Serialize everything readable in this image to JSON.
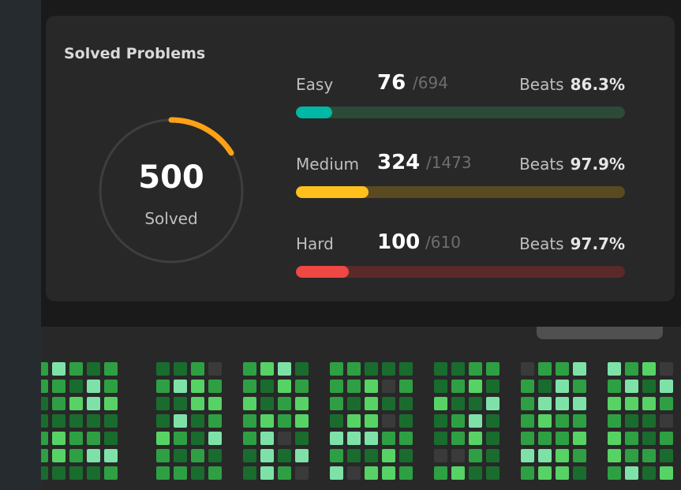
{
  "card": {
    "title": "Solved Problems",
    "solved_count": "500",
    "solved_label": "Solved",
    "ring_colors": {
      "track": "#3e3e3e",
      "progress": "#ffa116"
    },
    "difficulties": [
      {
        "label": "Easy",
        "solved": "76",
        "total": "/694",
        "beats_label": "Beats",
        "beats_value": "86.3%",
        "fraction": 0.11,
        "color": "#00b8a3",
        "track": "#2c4a37"
      },
      {
        "label": "Medium",
        "solved": "324",
        "total": "/1473",
        "beats_label": "Beats",
        "beats_value": "97.9%",
        "fraction": 0.22,
        "color": "#ffc01e",
        "track": "#5a4a22"
      },
      {
        "label": "Hard",
        "solved": "100",
        "total": "/610",
        "beats_label": "Beats",
        "beats_value": "97.7%",
        "fraction": 0.16,
        "color": "#ef4743",
        "track": "#5a2a28"
      }
    ]
  },
  "heatmap": {
    "palette": [
      "#3a3a3a",
      "#196c2e",
      "#2ea043",
      "#56d364",
      "#7ee2a8"
    ]
  }
}
